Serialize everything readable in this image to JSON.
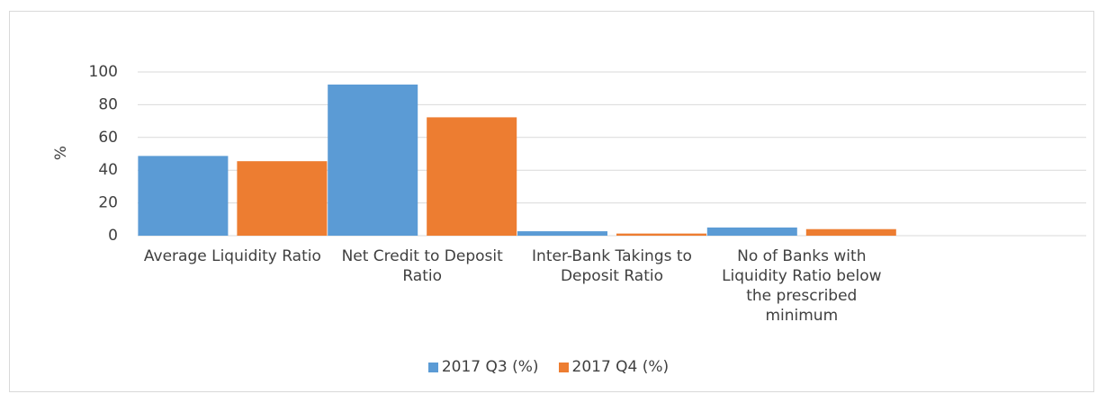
{
  "chart_data": {
    "type": "bar",
    "ylabel": "%",
    "categories": [
      "Average Liquidity Ratio",
      "Net Credit to Deposit Ratio",
      "Inter-Bank Takings to Deposit Ratio",
      "No of Banks with Liquidity Ratio below the prescribed minimum",
      null
    ],
    "series": [
      {
        "name": "2017 Q3 (%)",
        "color": "#5b9bd5",
        "values": [
          48.7,
          92.3,
          2.7,
          5,
          null
        ]
      },
      {
        "name": "2017 Q4 (%)",
        "color": "#ed7d31",
        "values": [
          45.5,
          72.3,
          1.3,
          4,
          null
        ]
      }
    ],
    "ylim": [
      0,
      100
    ],
    "yticks": [
      0,
      20,
      40,
      60,
      80,
      100
    ],
    "grid": true,
    "legend": "bottom"
  }
}
